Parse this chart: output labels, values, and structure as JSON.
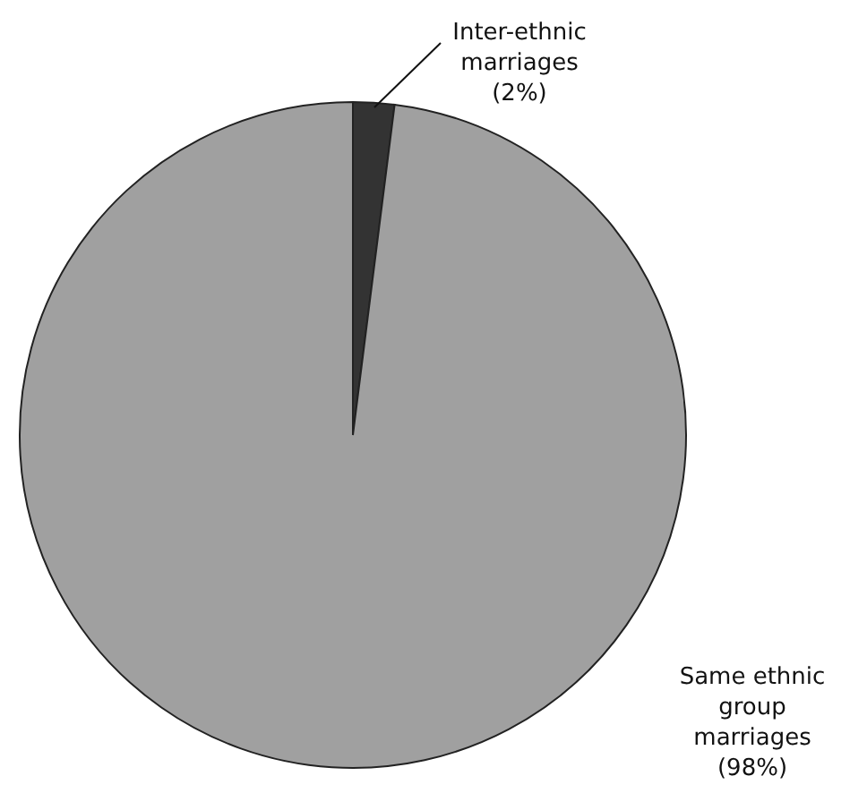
{
  "chart_data": {
    "type": "pie",
    "categories": [
      "Inter-ethnic marriages",
      "Same ethnic group marriages"
    ],
    "values": [
      2,
      98
    ],
    "value_labels": [
      "(2%)",
      "(98%)"
    ],
    "colors": [
      "#333333",
      "#a0a0a0"
    ]
  }
}
